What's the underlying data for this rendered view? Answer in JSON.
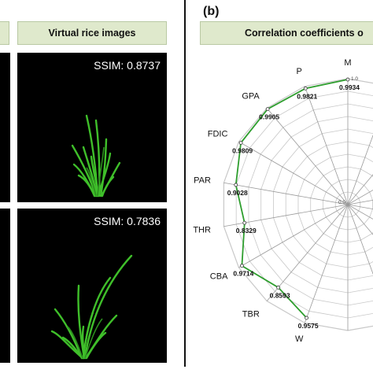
{
  "left_panel": {
    "header": "Virtual rice images",
    "images": [
      {
        "ssim_label": "SSIM: 0.8737"
      },
      {
        "ssim_label": "SSIM: 0.7836"
      }
    ]
  },
  "right_panel": {
    "panel_label": "(b)",
    "header": "Correlation coefficients o",
    "radar": {
      "scale_max_label": "1.0",
      "center_label": "0.0",
      "ring_count": 10,
      "axes": [
        {
          "name": "M",
          "value": 0.9934,
          "value_label": "0.9934"
        },
        {
          "name": "P",
          "value": 0.9821,
          "value_label": "0.9821"
        },
        {
          "name": "GPA",
          "value": 0.9905,
          "value_label": "0.9905"
        },
        {
          "name": "FDIC",
          "value": 0.9809,
          "value_label": "0.9809"
        },
        {
          "name": "PAR",
          "value": 0.9028,
          "value_label": "0.9028"
        },
        {
          "name": "THR",
          "value": 0.8329,
          "value_label": "0.8329"
        },
        {
          "name": "CBA",
          "value": 0.9714,
          "value_label": "0.9714"
        },
        {
          "name": "TBR",
          "value": 0.8593,
          "value_label": "0.8593"
        },
        {
          "name": "W",
          "value": 0.9575,
          "value_label": "0.9575"
        }
      ],
      "line_color": "#2e9e2e",
      "grid_color": "#c8c8c8",
      "spoke_color": "#9a9a9a"
    }
  }
}
